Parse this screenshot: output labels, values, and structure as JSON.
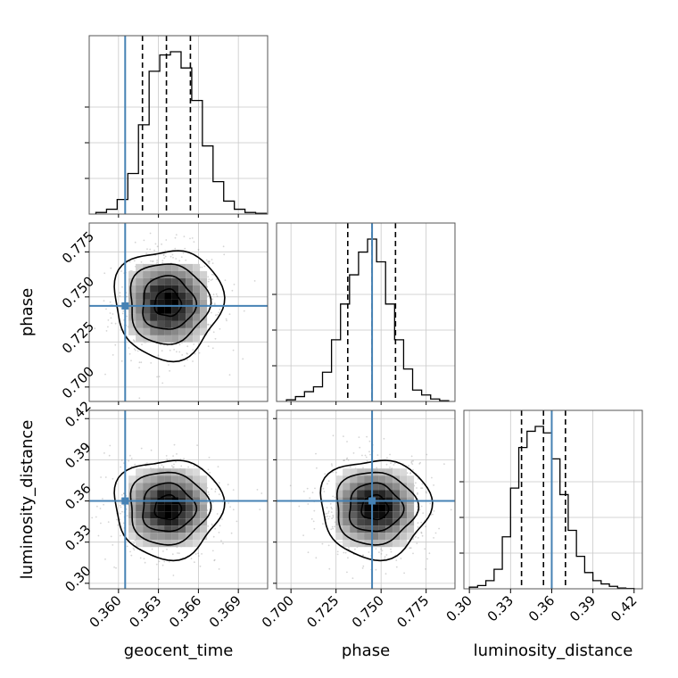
{
  "chart_data": {
    "type": "corner",
    "parameters": [
      "geocent_time",
      "phase",
      "luminosity_distance"
    ],
    "axis_labels": {
      "x": [
        "geocent_time",
        "phase",
        "luminosity_distance"
      ],
      "y": [
        "",
        "phase",
        "luminosity_distance"
      ]
    },
    "ranges": {
      "geocent_time": [
        0.3578,
        0.3712
      ],
      "phase": [
        0.692,
        0.791
      ],
      "luminosity_distance": [
        0.296,
        0.426
      ]
    },
    "ticks": {
      "geocent_time": [
        "0.360",
        "0.363",
        "0.366",
        "0.369"
      ],
      "phase": [
        "0.700",
        "0.725",
        "0.750",
        "0.775"
      ],
      "luminosity_distance": [
        "0.30",
        "0.33",
        "0.36",
        "0.39",
        "0.42"
      ]
    },
    "injection": {
      "geocent_time": 0.3605,
      "phase": 0.745,
      "luminosity_distance": 0.36
    },
    "quantiles": {
      "geocent_time": [
        0.3618,
        0.3636,
        0.3654
      ],
      "phase": [
        0.7315,
        0.745,
        0.758
      ],
      "luminosity_distance": [
        0.338,
        0.354,
        0.37
      ]
    },
    "marginals": {
      "geocent_time": {
        "edges": [
          0.3583,
          0.3591,
          0.3599,
          0.3607,
          0.3615,
          0.3623,
          0.3631,
          0.3639,
          0.3647,
          0.3655,
          0.3663,
          0.3671,
          0.3679,
          0.3687,
          0.3695,
          0.3703,
          0.3711
        ],
        "counts": [
          0.01,
          0.03,
          0.09,
          0.25,
          0.55,
          0.88,
          0.98,
          1.0,
          0.9,
          0.7,
          0.42,
          0.2,
          0.08,
          0.03,
          0.01,
          0.005
        ]
      },
      "phase": {
        "edges": [
          0.6975,
          0.7025,
          0.7075,
          0.7125,
          0.7175,
          0.7225,
          0.7275,
          0.7325,
          0.7375,
          0.7425,
          0.7475,
          0.7525,
          0.7575,
          0.7625,
          0.7675,
          0.7725,
          0.7775,
          0.7825,
          0.7875
        ],
        "counts": [
          0.01,
          0.03,
          0.06,
          0.09,
          0.18,
          0.38,
          0.6,
          0.78,
          0.92,
          1.0,
          0.86,
          0.6,
          0.38,
          0.2,
          0.07,
          0.04,
          0.015,
          0.005
        ]
      },
      "luminosity_distance": {
        "edges": [
          0.3,
          0.306,
          0.312,
          0.318,
          0.324,
          0.33,
          0.336,
          0.342,
          0.348,
          0.354,
          0.36,
          0.366,
          0.372,
          0.378,
          0.384,
          0.39,
          0.396,
          0.402,
          0.408,
          0.414,
          0.42
        ],
        "counts": [
          0.01,
          0.02,
          0.05,
          0.12,
          0.32,
          0.62,
          0.87,
          0.97,
          1.0,
          0.96,
          0.8,
          0.58,
          0.36,
          0.2,
          0.1,
          0.05,
          0.03,
          0.015,
          0.005,
          0.002
        ]
      }
    },
    "pairs": [
      {
        "x": "geocent_time",
        "y": "phase",
        "center": [
          0.3637,
          0.7465
        ],
        "sigma": [
          0.0018,
          0.0135
        ]
      },
      {
        "x": "geocent_time",
        "y": "luminosity_distance",
        "center": [
          0.3637,
          0.355
        ],
        "sigma": [
          0.0018,
          0.016
        ]
      },
      {
        "x": "phase",
        "y": "luminosity_distance",
        "center": [
          0.7465,
          0.355
        ],
        "sigma": [
          0.0135,
          0.016
        ]
      }
    ],
    "injection_color": "#4682b4",
    "contour_color": "#000000",
    "grid": true
  }
}
